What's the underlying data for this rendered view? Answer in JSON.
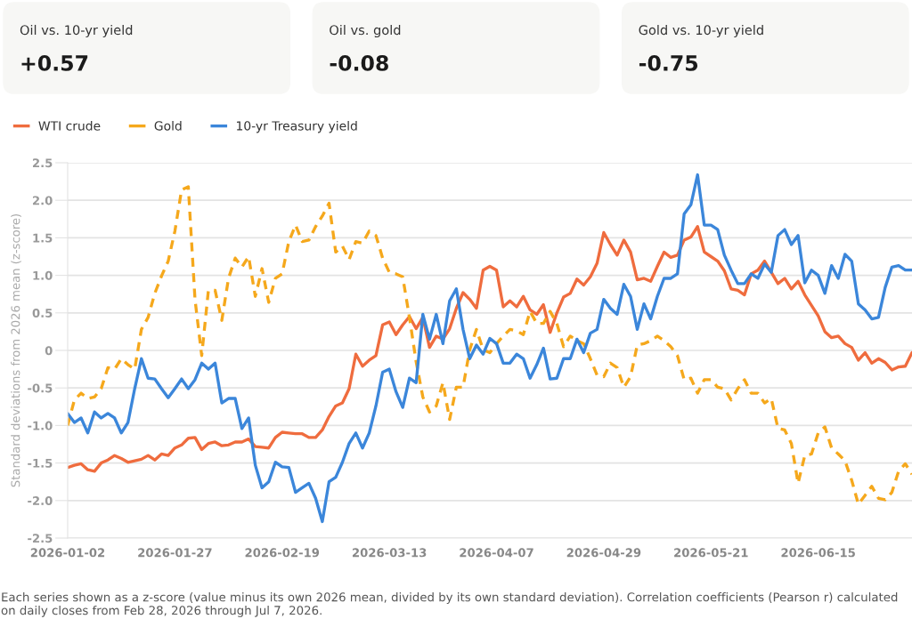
{
  "chart_data": [
    {
      "type": "other",
      "title": "Oil vs. 10-yr yield",
      "annotations": [
        "+0.57"
      ]
    },
    {
      "type": "other",
      "title": "Oil vs. gold",
      "annotations": [
        "-0.08"
      ]
    },
    {
      "type": "other",
      "title": "Gold vs. 10-yr yield",
      "annotations": [
        "-0.75"
      ]
    },
    {
      "type": "line",
      "ylabel": "Standard deviations from 2026 mean (z-score)",
      "categories": [
        "2026-01-02",
        null,
        null,
        null,
        null,
        null,
        null,
        null,
        null,
        null,
        null,
        null,
        null,
        null,
        null,
        null,
        "2026-01-27",
        null,
        null,
        null,
        null,
        null,
        null,
        null,
        null,
        null,
        null,
        null,
        null,
        null,
        null,
        null,
        "2026-02-19",
        null,
        null,
        null,
        null,
        null,
        null,
        null,
        null,
        null,
        null,
        null,
        null,
        null,
        null,
        null,
        "2026-03-13",
        null,
        null,
        null,
        null,
        null,
        null,
        null,
        null,
        null,
        null,
        null,
        null,
        null,
        null,
        null,
        "2026-04-07",
        null,
        null,
        null,
        null,
        null,
        null,
        null,
        null,
        null,
        null,
        null,
        null,
        null,
        null,
        null,
        "2026-04-29",
        null,
        null,
        null,
        null,
        null,
        null,
        null,
        null,
        null,
        null,
        null,
        null,
        null,
        null,
        null,
        "2026-05-21",
        null,
        null,
        null,
        null,
        null,
        null,
        null,
        null,
        null,
        null,
        null,
        null,
        null,
        null,
        null,
        "2026-06-15",
        null,
        null,
        null,
        null,
        null,
        null,
        null,
        null,
        null,
        null,
        null,
        null,
        null,
        null
      ],
      "ylim": [
        -2.5,
        2.5
      ],
      "yticks": [
        {
          "value": -2.5,
          "label": "-2.5"
        },
        {
          "value": -2,
          "label": "-2.0"
        },
        {
          "value": -1.5,
          "label": "-1.5"
        },
        {
          "value": -1,
          "label": "-1.0"
        },
        {
          "value": -0.5,
          "label": "-0.5"
        },
        0,
        0.5,
        {
          "value": 1,
          "label": "1.0"
        },
        1.5,
        {
          "value": 2,
          "label": "2.0"
        },
        2.5
      ],
      "grid": "y",
      "legend": "top",
      "marker": "none",
      "series": [
        {
          "name": "WTI crude",
          "color": "#ef6c3e",
          "line_style": "solid",
          "values": [
            -1.56,
            -1.53,
            -1.51,
            -1.59,
            -1.61,
            -1.5,
            -1.46,
            -1.4,
            -1.44,
            -1.49,
            -1.47,
            -1.45,
            -1.4,
            -1.46,
            -1.38,
            -1.4,
            -1.3,
            -1.26,
            -1.17,
            -1.16,
            -1.32,
            -1.24,
            -1.22,
            -1.27,
            -1.26,
            -1.22,
            -1.22,
            -1.18,
            -1.28,
            -1.29,
            -1.3,
            -1.16,
            -1.09,
            -1.1,
            -1.11,
            -1.11,
            -1.16,
            -1.16,
            -1.06,
            -0.88,
            -0.74,
            -0.7,
            -0.51,
            -0.05,
            -0.21,
            -0.13,
            -0.07,
            0.34,
            0.38,
            0.21,
            0.34,
            0.45,
            0.29,
            0.44,
            0.04,
            0.19,
            0.15,
            0.29,
            0.56,
            0.77,
            0.68,
            0.56,
            1.07,
            1.12,
            1.07,
            0.58,
            0.66,
            0.58,
            0.72,
            0.54,
            0.48,
            0.61,
            0.24,
            0.5,
            0.71,
            0.76,
            0.95,
            0.87,
            0.98,
            1.16,
            1.57,
            1.41,
            1.27,
            1.47,
            1.31,
            0.94,
            0.96,
            0.92,
            1.12,
            1.31,
            1.24,
            1.27,
            1.47,
            1.51,
            1.65,
            1.31,
            1.25,
            1.19,
            1.06,
            0.82,
            0.8,
            0.74,
            1.02,
            1.07,
            1.19,
            1.04,
            0.89,
            0.96,
            0.82,
            0.92,
            0.74,
            0.6,
            0.46,
            0.25,
            0.17,
            0.19,
            0.09,
            0.04,
            -0.13,
            -0.03,
            -0.17,
            -0.11,
            -0.16,
            -0.26,
            -0.22,
            -0.21,
            -0.03
          ]
        },
        {
          "name": "Gold",
          "color": "#f5a81c",
          "line_style": "dashed",
          "values": [
            -1.0,
            -0.66,
            -0.57,
            -0.64,
            -0.62,
            -0.51,
            -0.23,
            -0.25,
            -0.11,
            -0.19,
            -0.25,
            0.28,
            0.44,
            0.76,
            0.99,
            1.19,
            1.59,
            2.14,
            2.18,
            0.68,
            -0.07,
            0.8,
            0.8,
            0.4,
            0.96,
            1.23,
            1.11,
            1.25,
            0.72,
            1.09,
            0.64,
            0.96,
            1.02,
            1.45,
            1.67,
            1.45,
            1.47,
            1.65,
            1.79,
            1.96,
            1.31,
            1.39,
            1.21,
            1.45,
            1.43,
            1.59,
            1.53,
            1.23,
            1.04,
            1.02,
            0.98,
            0.44,
            -0.15,
            -0.62,
            -0.82,
            -0.74,
            -0.43,
            -0.92,
            -0.49,
            -0.49,
            0.01,
            0.28,
            0.01,
            -0.03,
            0.09,
            0.19,
            0.28,
            0.26,
            0.21,
            0.52,
            0.36,
            0.36,
            0.52,
            0.36,
            0.05,
            0.19,
            0.13,
            0.09,
            -0.11,
            -0.33,
            -0.35,
            -0.17,
            -0.23,
            -0.49,
            -0.35,
            0.07,
            0.09,
            0.13,
            0.19,
            0.13,
            0.05,
            -0.07,
            -0.39,
            -0.37,
            -0.57,
            -0.39,
            -0.39,
            -0.49,
            -0.51,
            -0.66,
            -0.51,
            -0.39,
            -0.57,
            -0.57,
            -0.7,
            -0.64,
            -1.04,
            -1.06,
            -1.24,
            -1.77,
            -1.4,
            -1.38,
            -1.1,
            -1.02,
            -1.3,
            -1.38,
            -1.47,
            -1.73,
            -2.05,
            -1.93,
            -1.81,
            -1.97,
            -1.99,
            -1.89,
            -1.61,
            -1.51,
            -1.65
          ]
        },
        {
          "name": "10-yr Treasury yield",
          "color": "#3b86da",
          "line_style": "solid",
          "values": [
            -0.84,
            -0.96,
            -0.9,
            -1.1,
            -0.82,
            -0.9,
            -0.84,
            -0.9,
            -1.1,
            -0.96,
            -0.51,
            -0.11,
            -0.37,
            -0.38,
            -0.51,
            -0.63,
            -0.51,
            -0.38,
            -0.51,
            -0.39,
            -0.17,
            -0.25,
            -0.17,
            -0.7,
            -0.64,
            -0.64,
            -1.04,
            -0.9,
            -1.53,
            -1.83,
            -1.75,
            -1.49,
            -1.55,
            -1.56,
            -1.89,
            -1.83,
            -1.77,
            -1.97,
            -2.28,
            -1.75,
            -1.69,
            -1.49,
            -1.24,
            -1.1,
            -1.3,
            -1.1,
            -0.74,
            -0.29,
            -0.25,
            -0.55,
            -0.76,
            -0.37,
            -0.43,
            0.48,
            0.15,
            0.48,
            0.09,
            0.66,
            0.82,
            0.28,
            -0.11,
            0.07,
            -0.05,
            0.16,
            0.09,
            -0.17,
            -0.17,
            -0.05,
            -0.11,
            -0.37,
            -0.19,
            0.03,
            -0.38,
            -0.37,
            -0.11,
            -0.11,
            0.15,
            -0.03,
            0.23,
            0.28,
            0.68,
            0.56,
            0.48,
            0.88,
            0.72,
            0.28,
            0.62,
            0.42,
            0.72,
            0.96,
            0.96,
            1.02,
            1.82,
            1.94,
            2.34,
            1.67,
            1.67,
            1.61,
            1.27,
            1.07,
            0.89,
            0.89,
            1.02,
            0.96,
            1.15,
            1.04,
            1.53,
            1.61,
            1.41,
            1.53,
            0.9,
            1.07,
            1.0,
            0.76,
            1.13,
            0.96,
            1.28,
            1.19,
            0.62,
            0.54,
            0.42,
            0.44,
            0.84,
            1.11,
            1.13,
            1.07,
            1.07
          ]
        }
      ],
      "annotations": [
        "Each series shown as a z-score (value minus its own 2026 mean, divided by its own standard deviation). Correlation coefficients (Pearson r) calculated on daily closes from Feb 28, 2026 through Jul 7, 2026."
      ]
    }
  ]
}
